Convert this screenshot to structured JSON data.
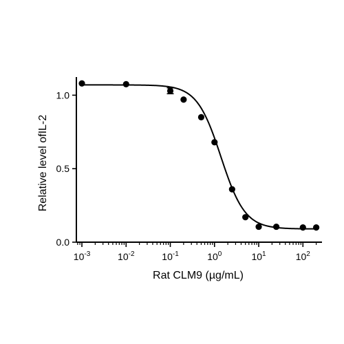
{
  "chart_data": {
    "type": "scatter",
    "title": "",
    "xlabel": "Rat CLM9 (µg/mL)",
    "ylabel": "Relative level ofIL-2",
    "x_scale": "log",
    "xlim": [
      0.00075,
      270
    ],
    "ylim": [
      0.0,
      1.1
    ],
    "grid": false,
    "legend": "none",
    "x_tick_labels": [
      {
        "base": "10",
        "exp": "-3",
        "value": 0.001
      },
      {
        "base": "10",
        "exp": "-2",
        "value": 0.01
      },
      {
        "base": "10",
        "exp": "-1",
        "value": 0.1
      },
      {
        "base": "10",
        "exp": "0",
        "value": 1
      },
      {
        "base": "10",
        "exp": "1",
        "value": 10
      },
      {
        "base": "10",
        "exp": "2",
        "value": 100
      }
    ],
    "y_tick_labels": [
      {
        "label": "0.0",
        "value": 0.0
      },
      {
        "label": "0.5",
        "value": 0.5
      },
      {
        "label": "1.0",
        "value": 1.0
      }
    ],
    "points": [
      {
        "x": 0.001,
        "y": 1.08
      },
      {
        "x": 0.01,
        "y": 1.075
      },
      {
        "x": 0.1,
        "y": 1.03,
        "err": 0.02
      },
      {
        "x": 0.2,
        "y": 0.97
      },
      {
        "x": 0.5,
        "y": 0.85
      },
      {
        "x": 1.0,
        "y": 0.68
      },
      {
        "x": 2.5,
        "y": 0.36
      },
      {
        "x": 5.0,
        "y": 0.17
      },
      {
        "x": 10.0,
        "y": 0.105
      },
      {
        "x": 25.0,
        "y": 0.105
      },
      {
        "x": 100.0,
        "y": 0.1
      },
      {
        "x": 200.0,
        "y": 0.1
      }
    ],
    "fit": {
      "model": "4PL",
      "top": 1.07,
      "bottom": 0.09,
      "ec50": 1.4,
      "hill": 1.6
    }
  }
}
